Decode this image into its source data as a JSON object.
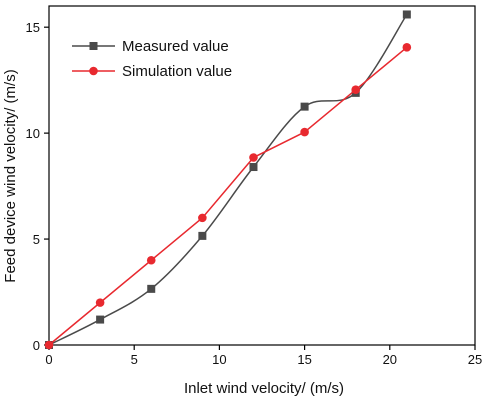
{
  "chart_data": {
    "type": "line",
    "title": "",
    "xlabel": "Inlet wind velocity/ (m/s)",
    "ylabel": "Feed device wind velocity/ (m/s)",
    "xlim": [
      0,
      25
    ],
    "ylim": [
      0,
      16
    ],
    "xticks": [
      0,
      5,
      10,
      15,
      20,
      25
    ],
    "yticks": [
      0,
      5,
      10,
      15
    ],
    "grid": false,
    "legend_position": "top-left",
    "series": [
      {
        "name": "Measured value",
        "color": "#4a4a4a",
        "marker": "square",
        "line": "smooth",
        "x": [
          0,
          3,
          6,
          9,
          12,
          15,
          18,
          21
        ],
        "y": [
          0,
          1.2,
          2.65,
          5.15,
          8.4,
          11.25,
          11.9,
          15.6
        ]
      },
      {
        "name": "Simulation value",
        "color": "#e8292f",
        "marker": "circle",
        "line": "straight",
        "x": [
          0,
          3,
          6,
          9,
          12,
          15,
          18,
          21
        ],
        "y": [
          0,
          2.0,
          4.0,
          6.0,
          8.85,
          10.05,
          12.05,
          14.05
        ]
      }
    ]
  }
}
